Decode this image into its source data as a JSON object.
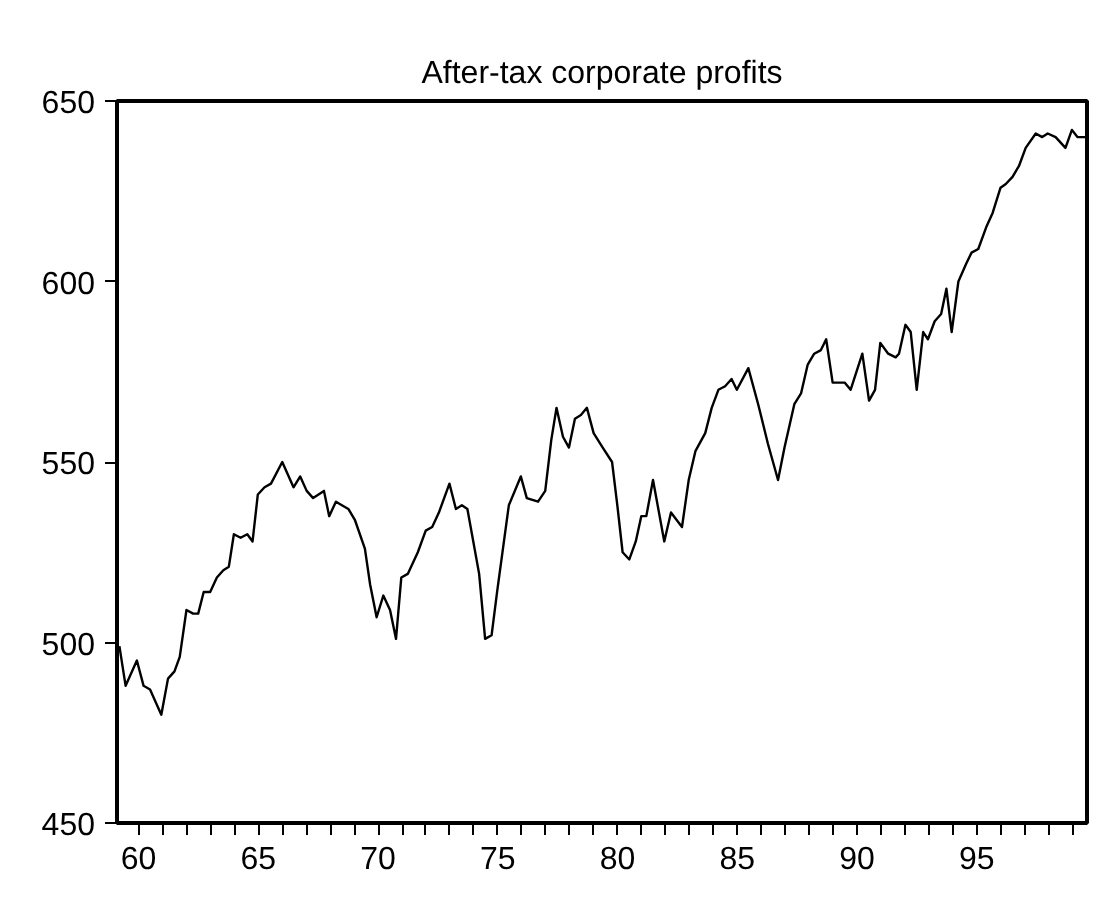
{
  "chart_data": {
    "type": "line",
    "title": "After-tax corporate profits",
    "x": [
      59.2,
      59.46,
      59.93,
      60.21,
      60.48,
      60.95,
      61.23,
      61.5,
      61.72,
      62.0,
      62.28,
      62.49,
      62.72,
      62.99,
      63.27,
      63.54,
      63.77,
      63.98,
      64.26,
      64.54,
      64.76,
      64.98,
      65.26,
      65.53,
      66.0,
      66.47,
      66.75,
      67.02,
      67.29,
      67.74,
      67.96,
      68.24,
      68.76,
      69.03,
      69.45,
      69.67,
      69.94,
      70.22,
      70.5,
      70.75,
      70.97,
      71.24,
      71.66,
      71.99,
      72.26,
      72.54,
      72.98,
      73.25,
      73.5,
      73.73,
      74.22,
      74.47,
      74.74,
      74.97,
      75.46,
      75.96,
      76.21,
      76.68,
      76.98,
      77.23,
      77.45,
      77.72,
      77.97,
      78.22,
      78.47,
      78.72,
      79.0,
      79.38,
      79.77,
      79.99,
      80.21,
      80.49,
      80.76,
      80.99,
      81.2,
      81.48,
      81.95,
      82.23,
      82.69,
      82.97,
      83.25,
      83.66,
      83.93,
      84.21,
      84.49,
      84.76,
      84.98,
      85.46,
      85.87,
      86.28,
      86.7,
      86.97,
      87.38,
      87.66,
      87.94,
      88.21,
      88.49,
      88.71,
      88.98,
      89.26,
      89.48,
      89.73,
      90.22,
      90.5,
      90.75,
      90.97,
      91.3,
      91.61,
      91.75,
      92.02,
      92.24,
      92.49,
      92.76,
      92.96,
      93.24,
      93.51,
      93.73,
      93.95,
      94.23,
      94.56,
      94.78,
      95.06,
      95.39,
      95.66,
      95.99,
      96.21,
      96.49,
      96.76,
      97.04,
      97.46,
      97.73,
      97.96,
      98.29,
      98.7,
      98.97,
      99.2,
      99.53
    ],
    "values": [
      499,
      488,
      495,
      488,
      487,
      480,
      490,
      492,
      496,
      509,
      508,
      508,
      514,
      514,
      518,
      520,
      521,
      530,
      529,
      530,
      528,
      541,
      543,
      544,
      550,
      543,
      546,
      542,
      540,
      542,
      535,
      539,
      537,
      534,
      526,
      516,
      507,
      513,
      509,
      501,
      518,
      519,
      525,
      531,
      532,
      536,
      544,
      537,
      538,
      537,
      519,
      501,
      502,
      514,
      538,
      546,
      540,
      539,
      542,
      556,
      565,
      557,
      554,
      562,
      563,
      565,
      558,
      554,
      550,
      538,
      525,
      523,
      528,
      535,
      535,
      545,
      528,
      536,
      532,
      545,
      553,
      558,
      565,
      570,
      571,
      573,
      570,
      576,
      566,
      555,
      545,
      554,
      566,
      569,
      577,
      580,
      581,
      584,
      572,
      572,
      572,
      570,
      580,
      567,
      570,
      583,
      580,
      579,
      580,
      588,
      586,
      570,
      586,
      584,
      589,
      591,
      598,
      586,
      600,
      605,
      608,
      609,
      615,
      619,
      626,
      627,
      629,
      632,
      637,
      641,
      640,
      641,
      640,
      637,
      642,
      640,
      640
    ],
    "color": "#000000",
    "xlim": [
      59.1,
      99.6
    ],
    "ylim": [
      450,
      650
    ],
    "xticks": [
      {
        "value": 60,
        "label": "60"
      },
      {
        "value": 61,
        "label": null
      },
      {
        "value": 62,
        "label": null
      },
      {
        "value": 63,
        "label": null
      },
      {
        "value": 64,
        "label": null
      },
      {
        "value": 65,
        "label": "65"
      },
      {
        "value": 66,
        "label": null
      },
      {
        "value": 67,
        "label": null
      },
      {
        "value": 68,
        "label": null
      },
      {
        "value": 69,
        "label": null
      },
      {
        "value": 70,
        "label": "70"
      },
      {
        "value": 71,
        "label": null
      },
      {
        "value": 72,
        "label": null
      },
      {
        "value": 73,
        "label": null
      },
      {
        "value": 74,
        "label": null
      },
      {
        "value": 75,
        "label": "75"
      },
      {
        "value": 76,
        "label": null
      },
      {
        "value": 77,
        "label": null
      },
      {
        "value": 78,
        "label": null
      },
      {
        "value": 79,
        "label": null
      },
      {
        "value": 80,
        "label": "80"
      },
      {
        "value": 81,
        "label": null
      },
      {
        "value": 82,
        "label": null
      },
      {
        "value": 83,
        "label": null
      },
      {
        "value": 84,
        "label": null
      },
      {
        "value": 85,
        "label": "85"
      },
      {
        "value": 86,
        "label": null
      },
      {
        "value": 87,
        "label": null
      },
      {
        "value": 88,
        "label": null
      },
      {
        "value": 89,
        "label": null
      },
      {
        "value": 90,
        "label": "90"
      },
      {
        "value": 91,
        "label": null
      },
      {
        "value": 92,
        "label": null
      },
      {
        "value": 93,
        "label": null
      },
      {
        "value": 94,
        "label": null
      },
      {
        "value": 95,
        "label": "95"
      },
      {
        "value": 96,
        "label": null
      },
      {
        "value": 97,
        "label": null
      },
      {
        "value": 98,
        "label": null
      },
      {
        "value": 99,
        "label": null
      }
    ],
    "yticks": [
      450,
      500,
      550,
      600,
      650
    ],
    "grid": false,
    "marker": "none",
    "line_style": "solid"
  }
}
